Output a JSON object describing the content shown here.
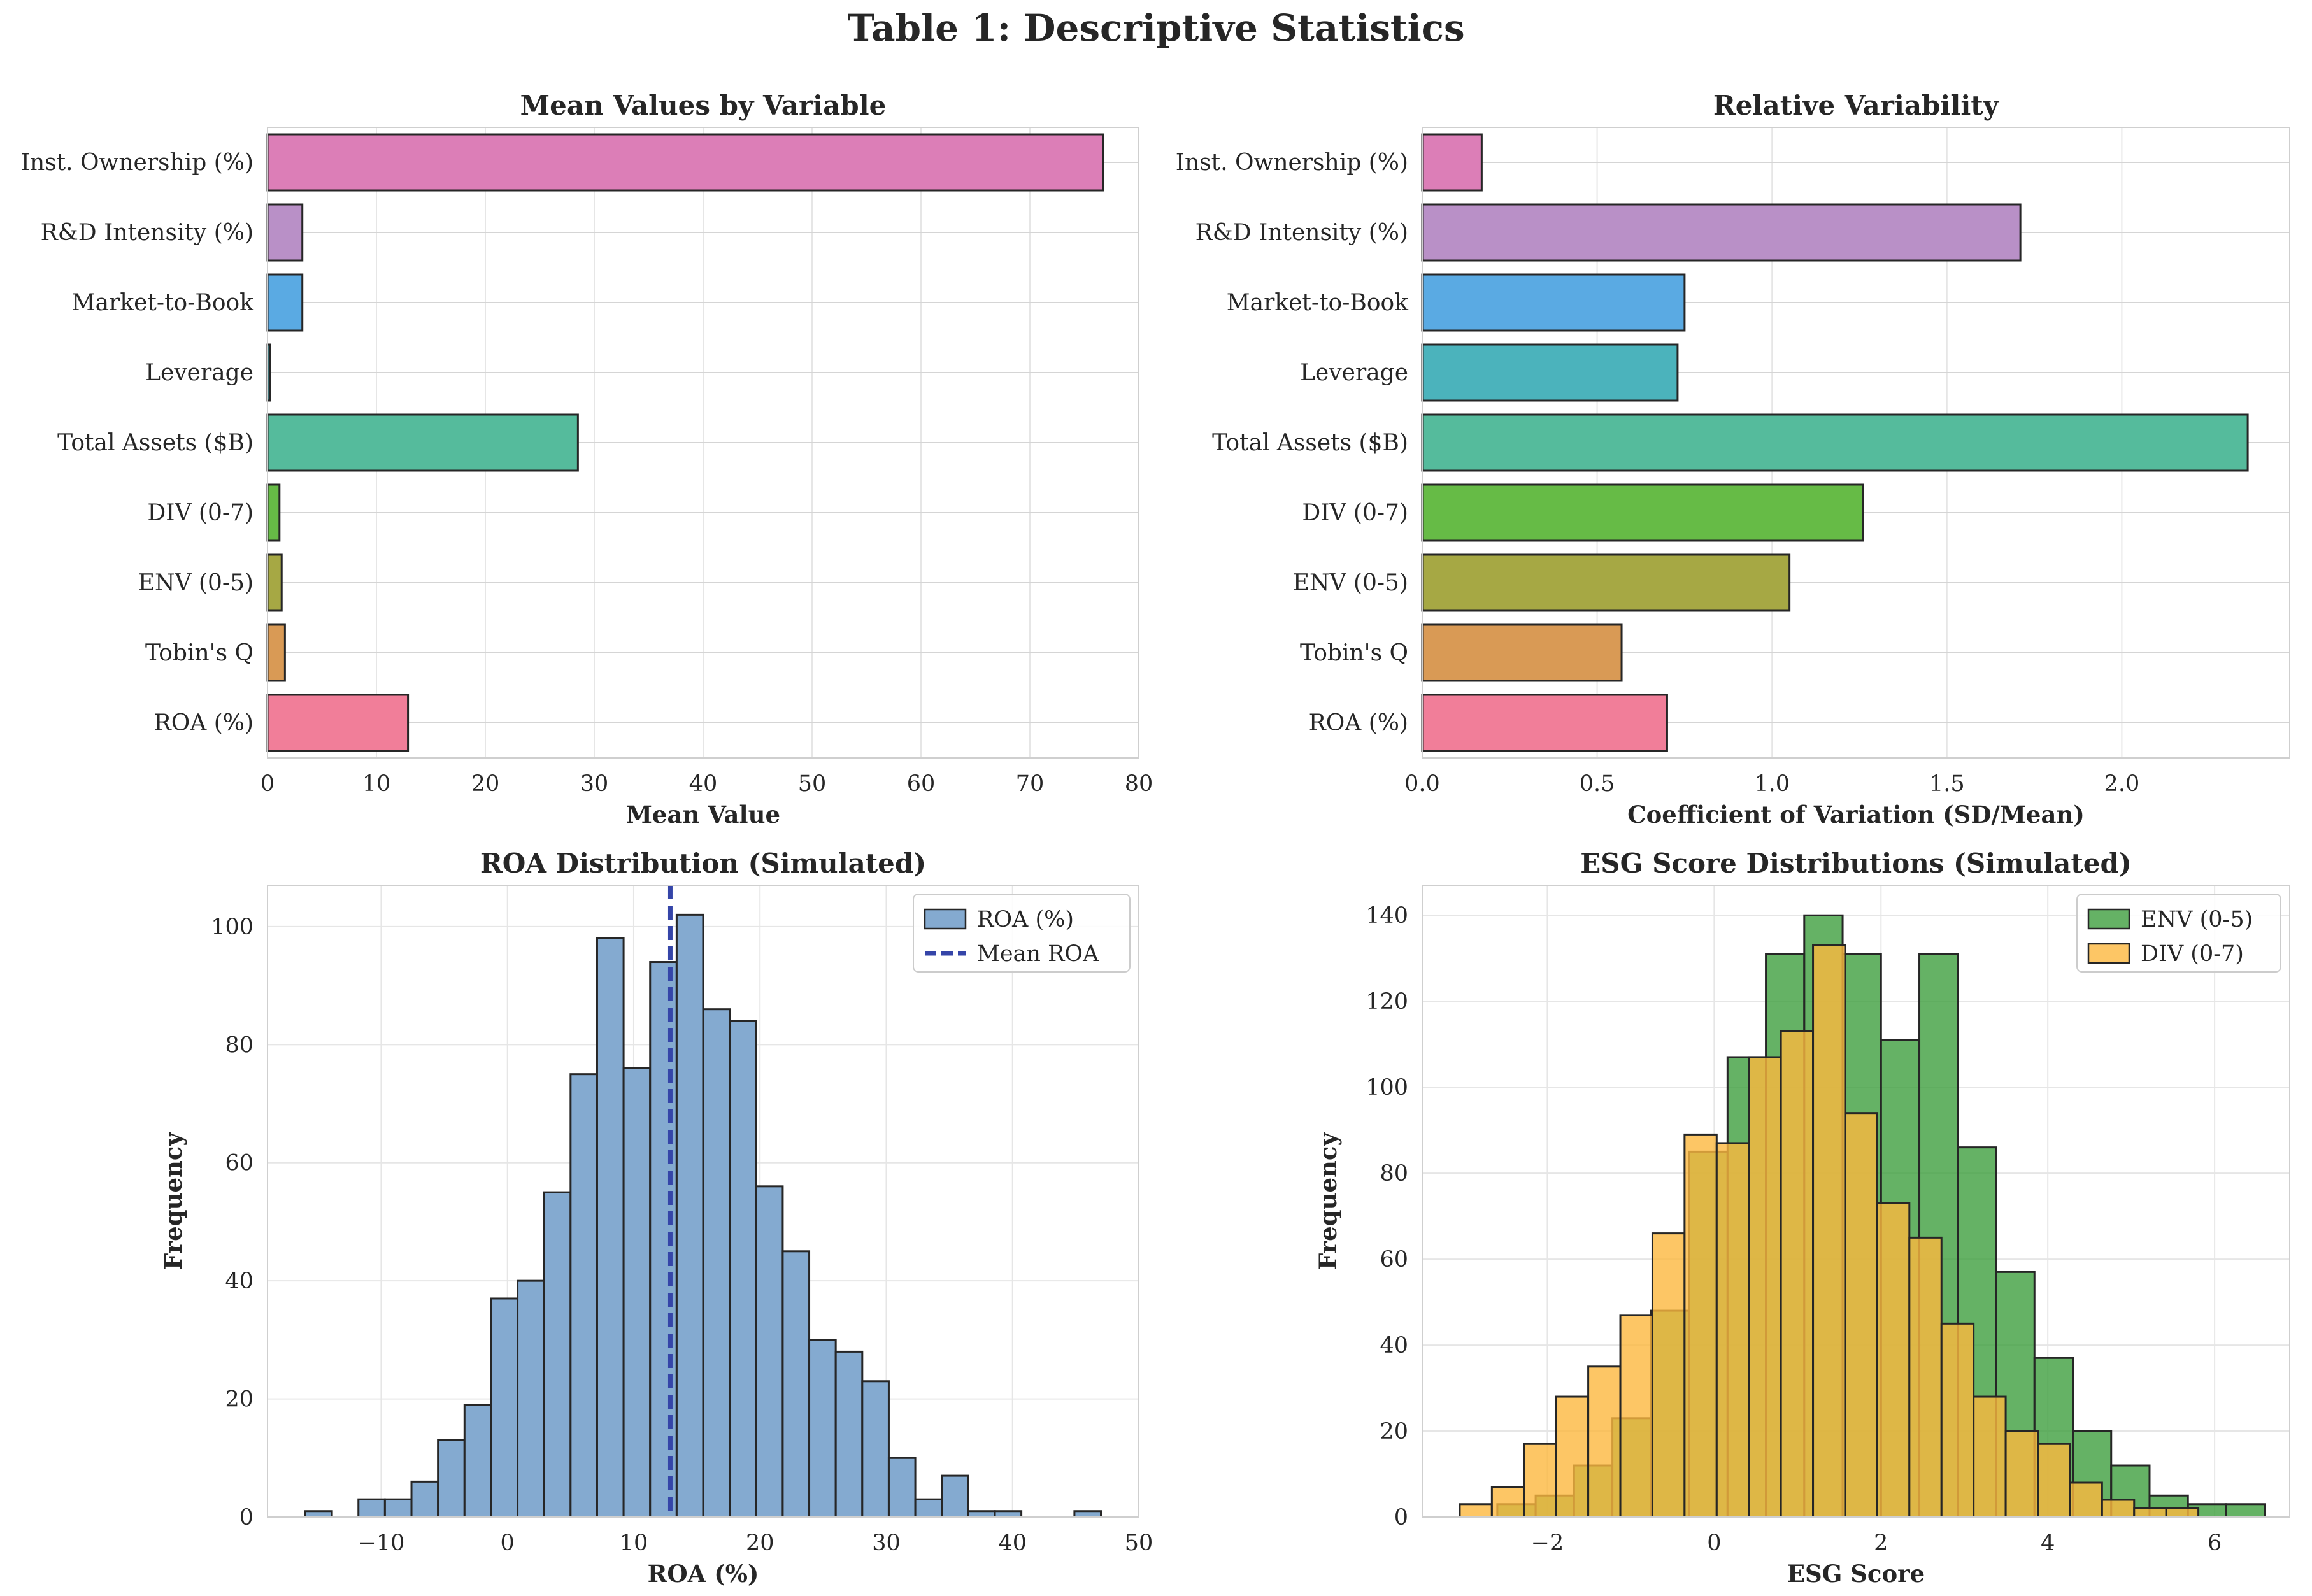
{
  "title": "Table 1: Descriptive Statistics",
  "chart_data": [
    {
      "type": "bar",
      "orientation": "horizontal",
      "title": "Mean Values by Variable",
      "xlabel": "Mean Value",
      "ylabel": "",
      "categories": [
        "Inst. Ownership (%)",
        "R&D Intensity (%)",
        "Market-to-Book",
        "Leverage",
        "Total Assets ($B)",
        "DIV (0-7)",
        "ENV (0-5)",
        "Tobin's Q",
        "ROA (%)"
      ],
      "values": [
        76.7,
        3.2,
        3.2,
        0.25,
        28.5,
        1.1,
        1.3,
        1.6,
        12.9
      ],
      "colors": [
        "#dc7eb7",
        "#b990c7",
        "#5aaae3",
        "#4bb3bc",
        "#55bb9c",
        "#66bb46",
        "#a6a844",
        "#d99a55",
        "#f17e99"
      ],
      "xlim": [
        0,
        80
      ],
      "xticks": [
        0,
        10,
        20,
        30,
        40,
        50,
        60,
        70,
        80
      ],
      "grid": true
    },
    {
      "type": "bar",
      "orientation": "horizontal",
      "title": "Relative Variability",
      "xlabel": "Coefficient of Variation (SD/Mean)",
      "ylabel": "",
      "categories": [
        "Inst. Ownership (%)",
        "R&D Intensity (%)",
        "Market-to-Book",
        "Leverage",
        "Total Assets ($B)",
        "DIV (0-7)",
        "ENV (0-5)",
        "Tobin's Q",
        "ROA (%)"
      ],
      "values": [
        0.17,
        1.71,
        0.75,
        0.73,
        2.36,
        1.26,
        1.05,
        0.57,
        0.7
      ],
      "colors": [
        "#dc7eb7",
        "#b990c7",
        "#5aaae3",
        "#4bb3bc",
        "#55bb9c",
        "#66bb46",
        "#a6a844",
        "#d99a55",
        "#f17e99"
      ],
      "xlim": [
        0,
        2.48
      ],
      "xticks": [
        "0.0",
        "0.5",
        "1.0",
        "1.5",
        "2.0"
      ],
      "grid": true
    },
    {
      "type": "histogram",
      "title": "ROA Distribution (Simulated)",
      "xlabel": "ROA (%)",
      "ylabel": "Frequency",
      "bin_start": -16,
      "bin_width": 2.1,
      "counts": [
        1,
        0,
        3,
        3,
        6,
        13,
        19,
        37,
        40,
        55,
        75,
        98,
        76,
        94,
        102,
        86,
        84,
        56,
        45,
        30,
        28,
        23,
        10,
        3,
        7,
        1,
        1,
        0,
        0,
        1
      ],
      "bar_color": "#84aad0",
      "mean_line": 12.9,
      "mean_color": "#3545a8",
      "xlim": [
        -19,
        50
      ],
      "ylim": [
        0,
        107
      ],
      "xticks": [
        "−10",
        "0",
        "10",
        "20",
        "30",
        "40",
        "50"
      ],
      "yticks": [
        0,
        20,
        40,
        60,
        80,
        100
      ],
      "legend": [
        "ROA (%)",
        "Mean ROA"
      ],
      "legend_position": "top-right",
      "grid": true
    },
    {
      "type": "histogram",
      "title": "ESG Score Distributions (Simulated)",
      "xlabel": "ESG Score",
      "ylabel": "Frequency",
      "xlim": [
        -3.5,
        6.9
      ],
      "ylim": [
        0,
        147
      ],
      "xticks": [
        "−2",
        "0",
        "2",
        "4",
        "6"
      ],
      "yticks": [
        0,
        20,
        40,
        60,
        80,
        100,
        120,
        140
      ],
      "legend_position": "top-right",
      "grid": true,
      "series": [
        {
          "name": "ENV (0-5)",
          "color": "#3f9f3f",
          "bin_start": -2.6,
          "bin_width": 0.46,
          "counts": [
            3,
            5,
            12,
            23,
            48,
            85,
            107,
            131,
            140,
            131,
            111,
            131,
            86,
            57,
            37,
            20,
            12,
            5,
            3,
            3,
            0,
            0,
            0,
            1
          ]
        },
        {
          "name": "DIV (0-7)",
          "color": "#fdb83f",
          "bin_start": -3.05,
          "bin_width": 0.385,
          "counts": [
            3,
            7,
            17,
            28,
            35,
            47,
            66,
            89,
            87,
            107,
            113,
            133,
            94,
            73,
            65,
            45,
            28,
            20,
            17,
            8,
            4,
            2,
            2
          ]
        }
      ]
    }
  ]
}
